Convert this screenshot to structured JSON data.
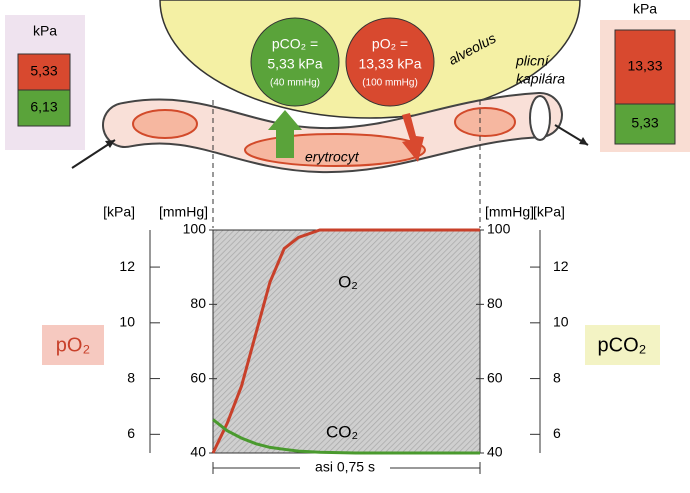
{
  "left_box": {
    "unit": "kPa",
    "top": "5,33",
    "bottom": "6,13"
  },
  "right_box": {
    "unit": "kPa",
    "top": "13,33",
    "bottom": "5,33"
  },
  "bubbles": [
    {
      "line1": "pCO₂ =",
      "line2": "5,33 kPa",
      "line3": "(40 mmHg)"
    },
    {
      "line1": "pO₂ =",
      "line2": "13,33 kPa",
      "line3": "(100 mmHg)"
    }
  ],
  "labels": {
    "alveolus": "alveolus",
    "capillary_1": "plicní",
    "capillary_2": "kapilára",
    "erythrocyte": "erytrocyt"
  },
  "chart_data": {
    "type": "line",
    "x": [
      0,
      0.04,
      0.08,
      0.12,
      0.16,
      0.2,
      0.24,
      0.3,
      0.4,
      0.75
    ],
    "xlim": [
      0,
      0.75
    ],
    "series": [
      {
        "name": "O₂",
        "color": "#c8402a",
        "values": [
          40,
          48,
          58,
          72,
          86,
          95,
          98,
          100,
          100,
          100
        ]
      },
      {
        "name": "CO₂",
        "color": "#4a9a2e",
        "values": [
          49,
          46,
          44,
          42.5,
          41.5,
          41,
          40.5,
          40.2,
          40,
          40
        ]
      }
    ],
    "y_label": "[mmHg]",
    "ylim": [
      40,
      100
    ],
    "yticks": [
      40,
      60,
      80,
      100
    ],
    "y2_label": "[kPa]",
    "y2lim": [
      5.33,
      13.33
    ],
    "y2ticks": [
      6,
      8,
      10,
      12
    ],
    "left_label": "pO₂",
    "right_label": "pCO₂",
    "duration_label": "asi 0,75 s"
  }
}
